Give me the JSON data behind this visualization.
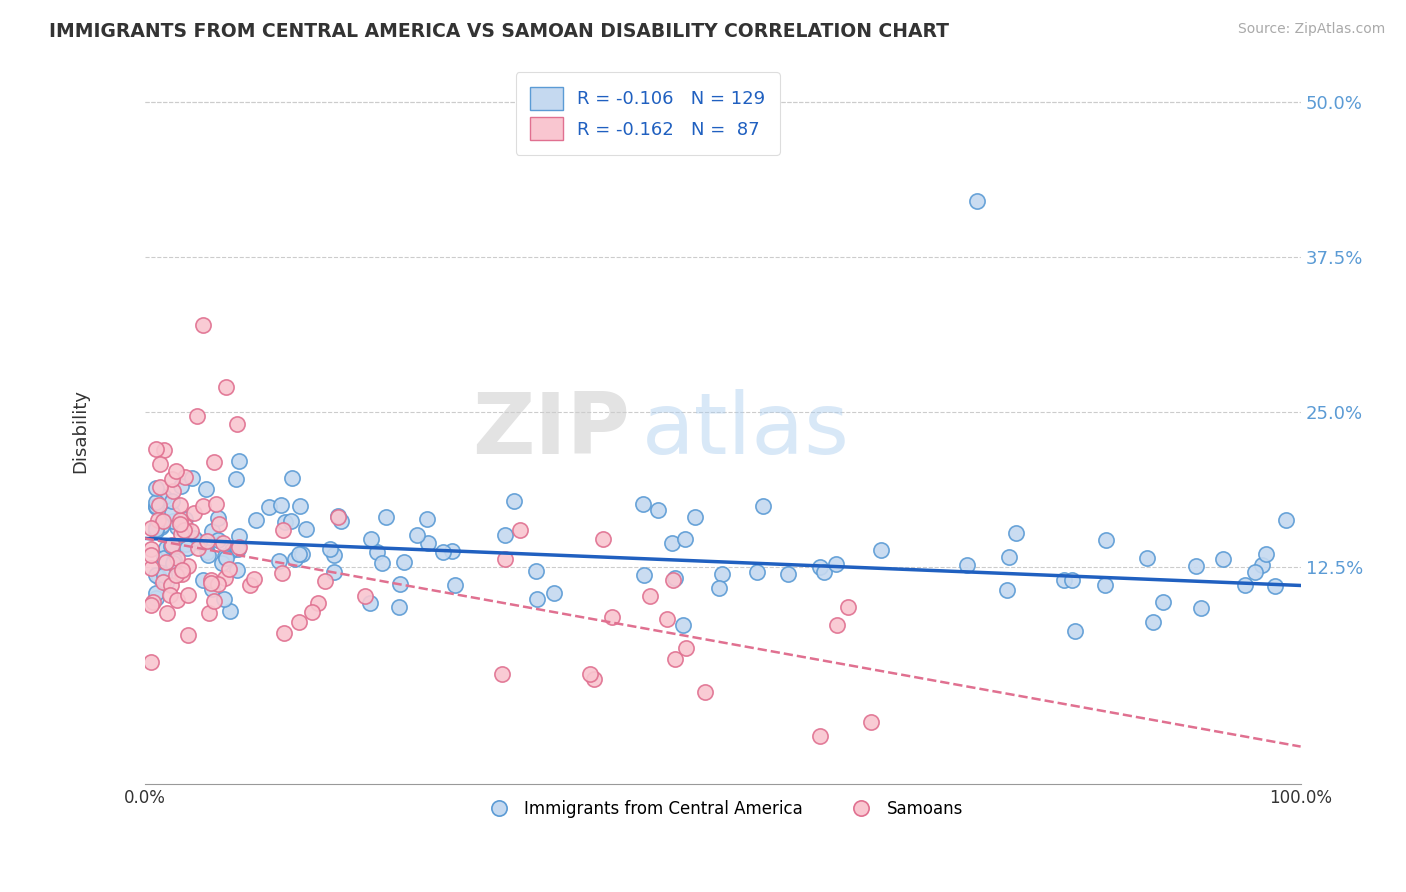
{
  "title": "IMMIGRANTS FROM CENTRAL AMERICA VS SAMOAN DISABILITY CORRELATION CHART",
  "source": "Source: ZipAtlas.com",
  "ylabel": "Disability",
  "y_tick_labels": [
    "12.5%",
    "25.0%",
    "37.5%",
    "50.0%"
  ],
  "y_tick_values": [
    0.125,
    0.25,
    0.375,
    0.5
  ],
  "xlim": [
    0.0,
    1.0
  ],
  "ylim": [
    -0.05,
    0.52
  ],
  "R1": -0.106,
  "N1": 129,
  "R2": -0.162,
  "N2": 87,
  "legend_label1": "Immigrants from Central America",
  "legend_label2": "Samoans",
  "blue_face_color": "#c5d9f0",
  "blue_edge_color": "#5b9bd5",
  "pink_face_color": "#f9c6d0",
  "pink_edge_color": "#e07090",
  "blue_line_color": "#2060c0",
  "pink_line_color": "#e07090",
  "legend1_face": "#c5d9f0",
  "legend1_edge": "#5b9bd5",
  "legend2_face": "#f9c6d0",
  "legend2_edge": "#e07090",
  "watermark_zip": "ZIP",
  "watermark_atlas": "atlas",
  "background_color": "#ffffff",
  "grid_color": "#cccccc",
  "tick_color": "#5b9bd5",
  "title_color": "#333333"
}
